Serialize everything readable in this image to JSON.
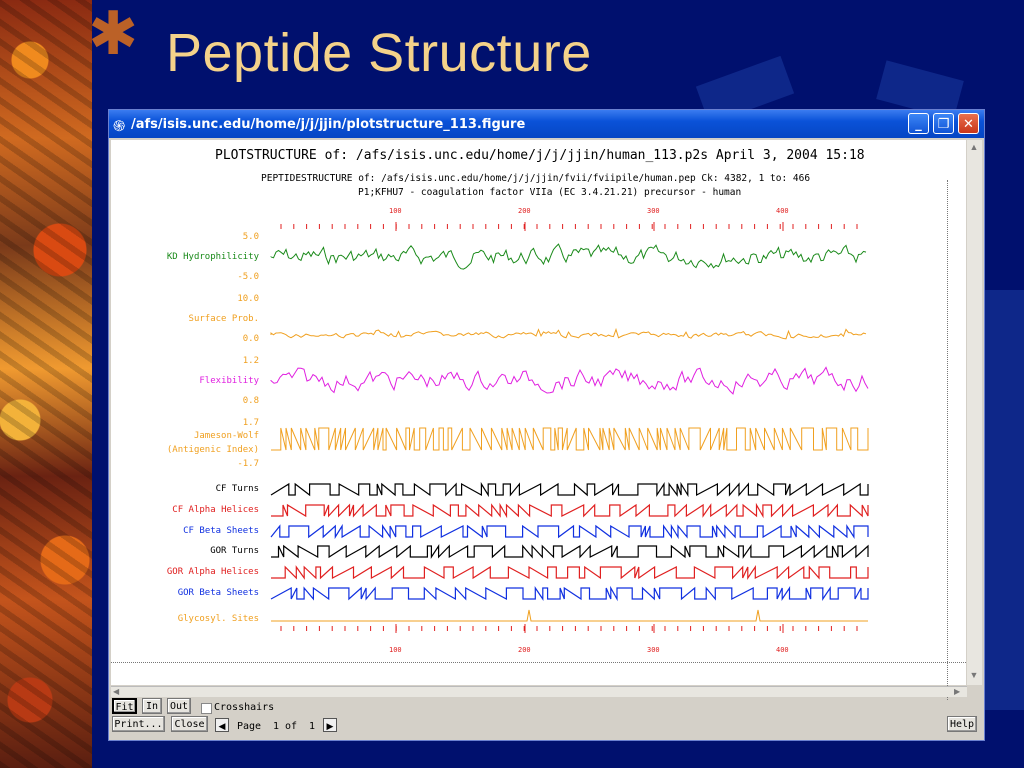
{
  "slide": {
    "title": "Peptide Structure"
  },
  "window": {
    "title": "/afs/isis.unc.edu/home/j/j/jjin/plotstructure_113.figure"
  },
  "plot": {
    "header_line1": "PLOTSTRUCTURE of: /afs/isis.unc.edu/home/j/j/jjin/human_113.p2s  April 3, 2004 15:18",
    "header_line2": "PEPTIDESTRUCTURE of: /afs/isis.unc.edu/home/j/j/jjin/fvii/fviipile/human.pep  Ck: 4382,  1 to: 466",
    "header_line3": "P1;KFHU7 - coagulation factor VIIa (EC 3.4.21.21) precursor - human",
    "axis_ticks": [
      "100",
      "200",
      "300",
      "400"
    ],
    "tracks": [
      {
        "key": "kd",
        "label": "KD Hydrophilicity",
        "color": "#1a8a1a",
        "scale_top": "5.0",
        "scale_bottom": "-5.0"
      },
      {
        "key": "surf",
        "label": "Surface Prob.",
        "color": "#f0a020",
        "scale_top": "10.0",
        "scale_bottom": "0.0"
      },
      {
        "key": "flex",
        "label": "Flexibility",
        "color": "#e020e0",
        "scale_top": "1.2",
        "scale_bottom": "0.8"
      },
      {
        "key": "jw",
        "label1": "Jameson-Wolf",
        "label2": "(Antigenic Index)",
        "color": "#f0a020",
        "scale_top": "1.7",
        "scale_bottom": "-1.7"
      },
      {
        "key": "cft",
        "label": "CF Turns",
        "color": "#000000"
      },
      {
        "key": "cfa",
        "label": "CF Alpha Helices",
        "color": "#e02020"
      },
      {
        "key": "cfb",
        "label": "CF Beta Sheets",
        "color": "#1030e0"
      },
      {
        "key": "gort",
        "label": "GOR Turns",
        "color": "#000000"
      },
      {
        "key": "gora",
        "label": "GOR Alpha Helices",
        "color": "#e02020"
      },
      {
        "key": "gorb",
        "label": "GOR Beta Sheets",
        "color": "#1030e0"
      },
      {
        "key": "glyc",
        "label": "Glycosyl. Sites",
        "color": "#f0a020"
      }
    ]
  },
  "controls": {
    "fit": "Fit",
    "in": "In",
    "out": "Out",
    "crosshairs": "Crosshairs",
    "print": "Print...",
    "close": "Close",
    "page_label": "Page",
    "page_num": "1",
    "of_label": "of",
    "page_total": "1",
    "help": "Help"
  },
  "icons": {
    "window_icon": "spiral-icon",
    "minimize": "minimize-icon",
    "restore": "restore-icon",
    "close": "close-icon"
  }
}
